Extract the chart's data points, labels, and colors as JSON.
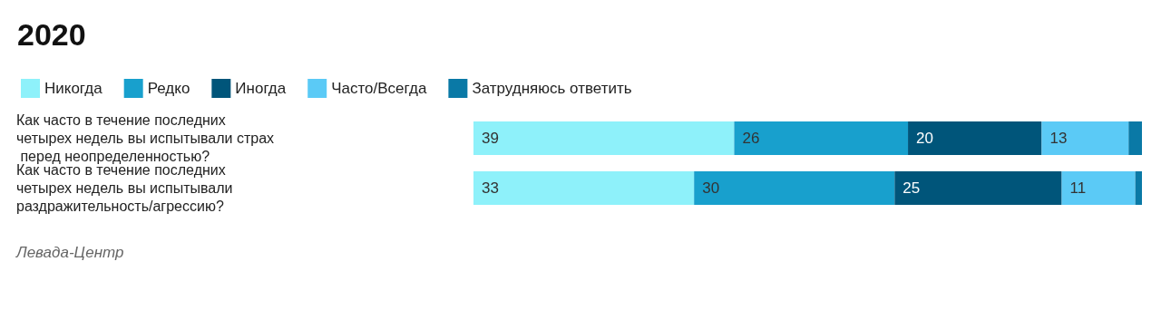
{
  "chart_data": {
    "type": "bar",
    "orientation": "horizontal",
    "stacked": true,
    "title": "2020",
    "categories": [
      "Как часто в течение последних четырех недель вы испытывали страх перед неопределенностью?",
      "Как часто в течение последних четырех недель вы испытывали раздражительность/агрессию?"
    ],
    "series": [
      {
        "name": "Никогда",
        "color": "#8ef1fa",
        "values": [
          39,
          33
        ],
        "value_labels": [
          "39",
          "33"
        ]
      },
      {
        "name": "Редко",
        "color": "#18a0cd",
        "values": [
          26,
          30
        ],
        "value_labels": [
          "26",
          "30"
        ]
      },
      {
        "name": "Иногда",
        "color": "#00557a",
        "values": [
          20,
          25
        ],
        "value_labels": [
          "20",
          "25"
        ]
      },
      {
        "name": "Часто/Всегда",
        "color": "#5bcaf6",
        "values": [
          13,
          11
        ],
        "value_labels": [
          "13",
          "11"
        ]
      },
      {
        "name": "Затрудняюсь ответить",
        "color": "#0a79a6",
        "values": [
          2,
          1
        ],
        "value_labels": [
          null,
          null
        ]
      }
    ],
    "xlim": [
      0,
      100
    ],
    "tick_labels": "y",
    "legend": "top left",
    "annotations": [
      "Левада-Центр"
    ]
  }
}
